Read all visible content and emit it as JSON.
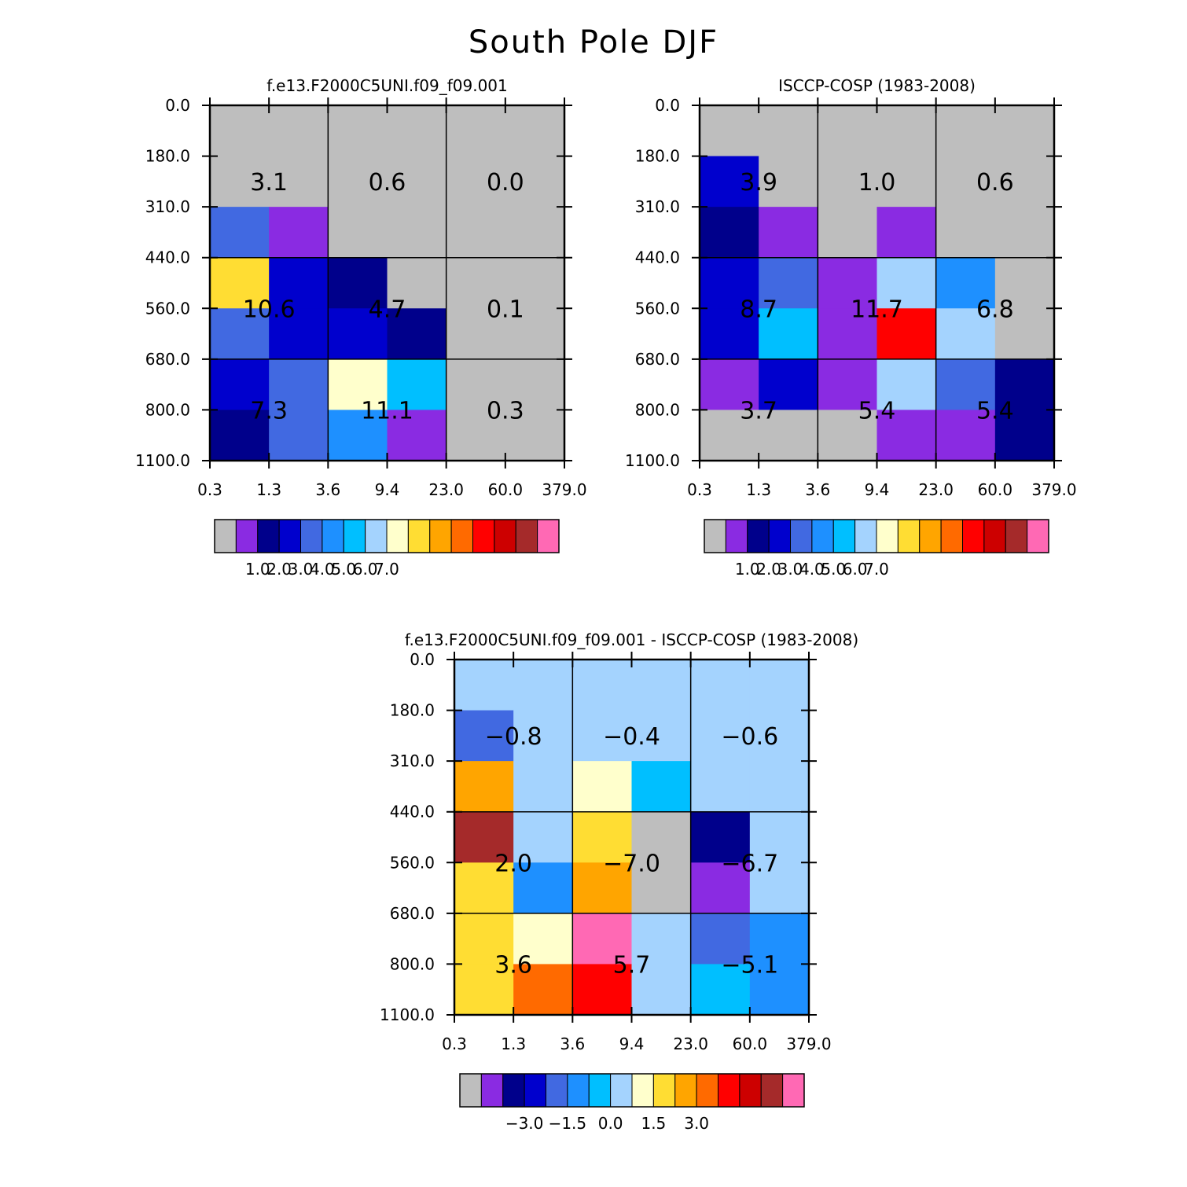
{
  "title": "South Pole DJF",
  "colors": {
    "palette12": [
      "#bebebe",
      "#8a2be2",
      "#00008b",
      "#0000cd",
      "#4169e1",
      "#1e90ff",
      "#00bfff",
      "#a4d3fe",
      "#ffffcc",
      "#ffdd33",
      "#ffa500",
      "#ff6a00",
      "#ff0000",
      "#cd0000",
      "#a52a2a",
      "#ff69b4"
    ],
    "grid": "#000000"
  },
  "chart_data": [
    {
      "type": "heatmap",
      "title": "f.e13.F2000C5UNI.f09_f09.001",
      "x_tick_labels": [
        "0.3",
        "1.3",
        "3.6",
        "9.4",
        "23.0",
        "60.0",
        "379.0"
      ],
      "y_tick_labels": [
        "0.0",
        "180.0",
        "310.0",
        "440.0",
        "560.0",
        "680.0",
        "800.0",
        "1100.0"
      ],
      "cells": [
        [
          "#bebebe",
          "#bebebe",
          "#bebebe",
          "#bebebe",
          "#bebebe",
          "#bebebe"
        ],
        [
          "#bebebe",
          "#bebebe",
          "#bebebe",
          "#bebebe",
          "#bebebe",
          "#bebebe"
        ],
        [
          "#4169e1",
          "#8a2be2",
          "#bebebe",
          "#bebebe",
          "#bebebe",
          "#bebebe"
        ],
        [
          "#ffdd33",
          "#0000cd",
          "#00008b",
          "#bebebe",
          "#bebebe",
          "#bebebe"
        ],
        [
          "#4169e1",
          "#0000cd",
          "#0000cd",
          "#00008b",
          "#bebebe",
          "#bebebe"
        ],
        [
          "#0000cd",
          "#4169e1",
          "#ffffcc",
          "#00bfff",
          "#bebebe",
          "#bebebe"
        ],
        [
          "#00008b",
          "#4169e1",
          "#1e90ff",
          "#8a2be2",
          "#bebebe",
          "#bebebe"
        ]
      ],
      "block_values": [
        [
          "3.1",
          "0.6",
          "0.0"
        ],
        [
          "10.6",
          "4.7",
          "0.1"
        ],
        [
          "7.3",
          "11.1",
          "0.3"
        ]
      ],
      "colorbar_labels": [
        "1.0",
        "2.0",
        "3.0",
        "4.0",
        "5.0",
        "6.0",
        "7.0"
      ]
    },
    {
      "type": "heatmap",
      "title": "ISCCP-COSP (1983-2008)",
      "x_tick_labels": [
        "0.3",
        "1.3",
        "3.6",
        "9.4",
        "23.0",
        "60.0",
        "379.0"
      ],
      "y_tick_labels": [
        "0.0",
        "180.0",
        "310.0",
        "440.0",
        "560.0",
        "680.0",
        "800.0",
        "1100.0"
      ],
      "cells": [
        [
          "#bebebe",
          "#bebebe",
          "#bebebe",
          "#bebebe",
          "#bebebe",
          "#bebebe"
        ],
        [
          "#0000cd",
          "#bebebe",
          "#bebebe",
          "#bebebe",
          "#bebebe",
          "#bebebe"
        ],
        [
          "#00008b",
          "#8a2be2",
          "#bebebe",
          "#8a2be2",
          "#bebebe",
          "#bebebe"
        ],
        [
          "#0000cd",
          "#4169e1",
          "#8a2be2",
          "#a4d3fe",
          "#1e90ff",
          "#bebebe"
        ],
        [
          "#0000cd",
          "#00bfff",
          "#8a2be2",
          "#ff0000",
          "#a4d3fe",
          "#bebebe"
        ],
        [
          "#8a2be2",
          "#0000cd",
          "#8a2be2",
          "#a4d3fe",
          "#4169e1",
          "#00008b"
        ],
        [
          "#bebebe",
          "#bebebe",
          "#bebebe",
          "#8a2be2",
          "#8a2be2",
          "#00008b"
        ]
      ],
      "block_values": [
        [
          "3.9",
          "1.0",
          "0.6"
        ],
        [
          "8.7",
          "11.7",
          "6.8"
        ],
        [
          "3.7",
          "5.4",
          "5.4"
        ]
      ],
      "colorbar_labels": [
        "1.0",
        "2.0",
        "3.0",
        "4.0",
        "5.0",
        "6.0",
        "7.0"
      ]
    },
    {
      "type": "heatmap",
      "title": "f.e13.F2000C5UNI.f09_f09.001 - ISCCP-COSP (1983-2008)",
      "x_tick_labels": [
        "0.3",
        "1.3",
        "3.6",
        "9.4",
        "23.0",
        "60.0",
        "379.0"
      ],
      "y_tick_labels": [
        "0.0",
        "180.0",
        "310.0",
        "440.0",
        "560.0",
        "680.0",
        "800.0",
        "1100.0"
      ],
      "cells": [
        [
          "#a4d3fe",
          "#a4d3fe",
          "#a4d3fe",
          "#a4d3fe",
          "#a4d3fe",
          "#a4d3fe"
        ],
        [
          "#4169e1",
          "#a4d3fe",
          "#a4d3fe",
          "#a4d3fe",
          "#a4d3fe",
          "#a4d3fe"
        ],
        [
          "#ffa500",
          "#a4d3fe",
          "#ffffcc",
          "#00bfff",
          "#a4d3fe",
          "#a4d3fe"
        ],
        [
          "#a52a2a",
          "#a4d3fe",
          "#ffdd33",
          "#bebebe",
          "#00008b",
          "#a4d3fe"
        ],
        [
          "#ffdd33",
          "#1e90ff",
          "#ffa500",
          "#bebebe",
          "#8a2be2",
          "#a4d3fe"
        ],
        [
          "#ffdd33",
          "#ffffcc",
          "#ff69b4",
          "#a4d3fe",
          "#4169e1",
          "#1e90ff"
        ],
        [
          "#ffdd33",
          "#ff6a00",
          "#ff0000",
          "#a4d3fe",
          "#00bfff",
          "#1e90ff"
        ]
      ],
      "block_values": [
        [
          "-0.8",
          "-0.4",
          "-0.6"
        ],
        [
          "2.0",
          "-7.0",
          "-6.7"
        ],
        [
          "3.6",
          "5.7",
          "-5.1"
        ]
      ],
      "colorbar_labels": [
        "-3.0",
        "-1.5",
        "0.0",
        "1.5",
        "3.0"
      ]
    }
  ]
}
